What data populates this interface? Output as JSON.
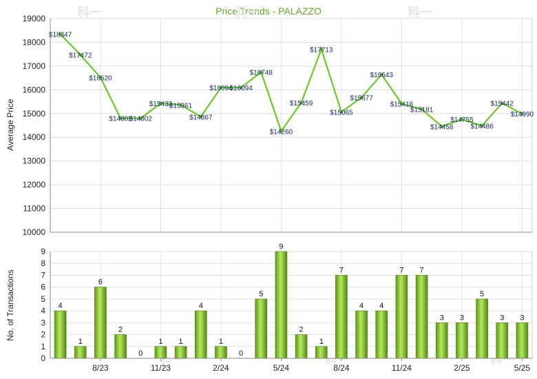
{
  "chart_data": [
    {
      "type": "line",
      "title": "Price Trends - PALAZZO",
      "ylabel": "Average Price",
      "ylim": [
        10000,
        19000
      ],
      "yticks": [
        10000,
        11000,
        12000,
        13000,
        14000,
        15000,
        16000,
        17000,
        18000,
        19000
      ],
      "grid": true,
      "series": [
        {
          "color": "#66cc22",
          "values": [
            18347,
            17472,
            16520,
            14802,
            14802,
            15433,
            15361,
            14867,
            16094,
            16094,
            16748,
            14260,
            15459,
            17713,
            15065,
            15677,
            16643,
            15418,
            15181,
            14458,
            14755,
            14486,
            15442,
            14990
          ],
          "labels": [
            "$18347",
            "$17472",
            "$16520",
            "$14802",
            "$14802",
            "$15433",
            "$15361",
            "$14867",
            "$16094",
            "$16094",
            "$16748",
            "$14260",
            "$15459",
            "$17713",
            "$15065",
            "$15677",
            "$16643",
            "$15418",
            "$15181",
            "$14458",
            "$14755",
            "$14486",
            "$15442",
            "$14990"
          ]
        }
      ]
    },
    {
      "type": "bar",
      "ylabel": "No. of Transactions",
      "ylim": [
        0,
        9
      ],
      "yticks": [
        0,
        1,
        2,
        3,
        4,
        5,
        6,
        7,
        8,
        9
      ],
      "grid": true,
      "xtick_labels": [
        "8/23",
        "11/23",
        "2/24",
        "5/24",
        "8/24",
        "11/24",
        "2/25",
        "5/25"
      ],
      "values": [
        4,
        1,
        6,
        2,
        0,
        1,
        1,
        4,
        1,
        0,
        5,
        9,
        2,
        1,
        7,
        4,
        4,
        7,
        7,
        3,
        3,
        5,
        3,
        3
      ],
      "colors": {
        "bar_light": "#b8e860",
        "bar_dark": "#5a9a14"
      }
    }
  ],
  "watermark": "科一"
}
